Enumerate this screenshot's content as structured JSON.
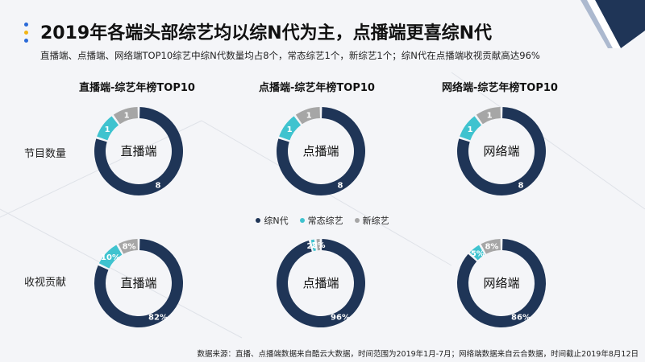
{
  "header": {
    "title": "2019年各端头部综艺均以综N代为主，点播端更喜综N代",
    "subtitle": "直播端、点播端、网络端TOP10综艺中综N代数量均占8个，常态综艺1个，新综艺1个；综N代在点播端收视贡献高达96%"
  },
  "colors": {
    "zongN": "#1f3557",
    "changtai": "#3fc3cf",
    "xin": "#a6a6a6",
    "accent_blue": "#2a6ad8",
    "accent_yellow": "#f2b515"
  },
  "columns": [
    {
      "title": "直播端-综艺年榜TOP10",
      "center": "直播端"
    },
    {
      "title": "点播端-综艺年榜TOP10",
      "center": "点播端"
    },
    {
      "title": "网络端-综艺年榜TOP10",
      "center": "网络端"
    }
  ],
  "rows": [
    {
      "label": "节目数量"
    },
    {
      "label": "收视贡献"
    }
  ],
  "legend": [
    {
      "label": "综N代",
      "color_key": "zongN"
    },
    {
      "label": "常态综艺",
      "color_key": "changtai"
    },
    {
      "label": "新综艺",
      "color_key": "xin"
    }
  ],
  "chart_data": [
    {
      "type": "pie",
      "donut": true,
      "title": "直播端-综艺年榜TOP10",
      "row": "节目数量",
      "center_label": "直播端",
      "categories": [
        "综N代",
        "常态综艺",
        "新综艺"
      ],
      "values": [
        8,
        1,
        1
      ],
      "value_labels": [
        "8",
        "1",
        "1"
      ]
    },
    {
      "type": "pie",
      "donut": true,
      "title": "点播端-综艺年榜TOP10",
      "row": "节目数量",
      "center_label": "点播端",
      "categories": [
        "综N代",
        "常态综艺",
        "新综艺"
      ],
      "values": [
        8,
        1,
        1
      ],
      "value_labels": [
        "8",
        "1",
        "1"
      ]
    },
    {
      "type": "pie",
      "donut": true,
      "title": "网络端-综艺年榜TOP10",
      "row": "节目数量",
      "center_label": "网络端",
      "categories": [
        "综N代",
        "常态综艺",
        "新综艺"
      ],
      "values": [
        8,
        1,
        1
      ],
      "value_labels": [
        "8",
        "1",
        "1"
      ]
    },
    {
      "type": "pie",
      "donut": true,
      "title": "直播端-综艺年榜TOP10",
      "row": "收视贡献",
      "center_label": "直播端",
      "categories": [
        "综N代",
        "常态综艺",
        "新综艺"
      ],
      "values": [
        82,
        10,
        8
      ],
      "value_labels": [
        "82%",
        "10%",
        "8%"
      ]
    },
    {
      "type": "pie",
      "donut": true,
      "title": "点播端-综艺年榜TOP10",
      "row": "收视贡献",
      "center_label": "点播端",
      "categories": [
        "综N代",
        "常态综艺",
        "新综艺"
      ],
      "values": [
        96,
        2,
        2
      ],
      "value_labels": [
        "96%",
        "2%",
        "2%"
      ]
    },
    {
      "type": "pie",
      "donut": true,
      "title": "网络端-综艺年榜TOP10",
      "row": "收视贡献",
      "center_label": "网络端",
      "categories": [
        "综N代",
        "常态综艺",
        "新综艺"
      ],
      "values": [
        86,
        5,
        8
      ],
      "value_labels": [
        "86%",
        "5%",
        "8%"
      ]
    }
  ],
  "footer": {
    "source": "数据来源：直播、点播端数据来自酷云大数据，时间范围为2019年1月-7月；网络端数据来自云合数据，时间截止2019年8月12日"
  }
}
